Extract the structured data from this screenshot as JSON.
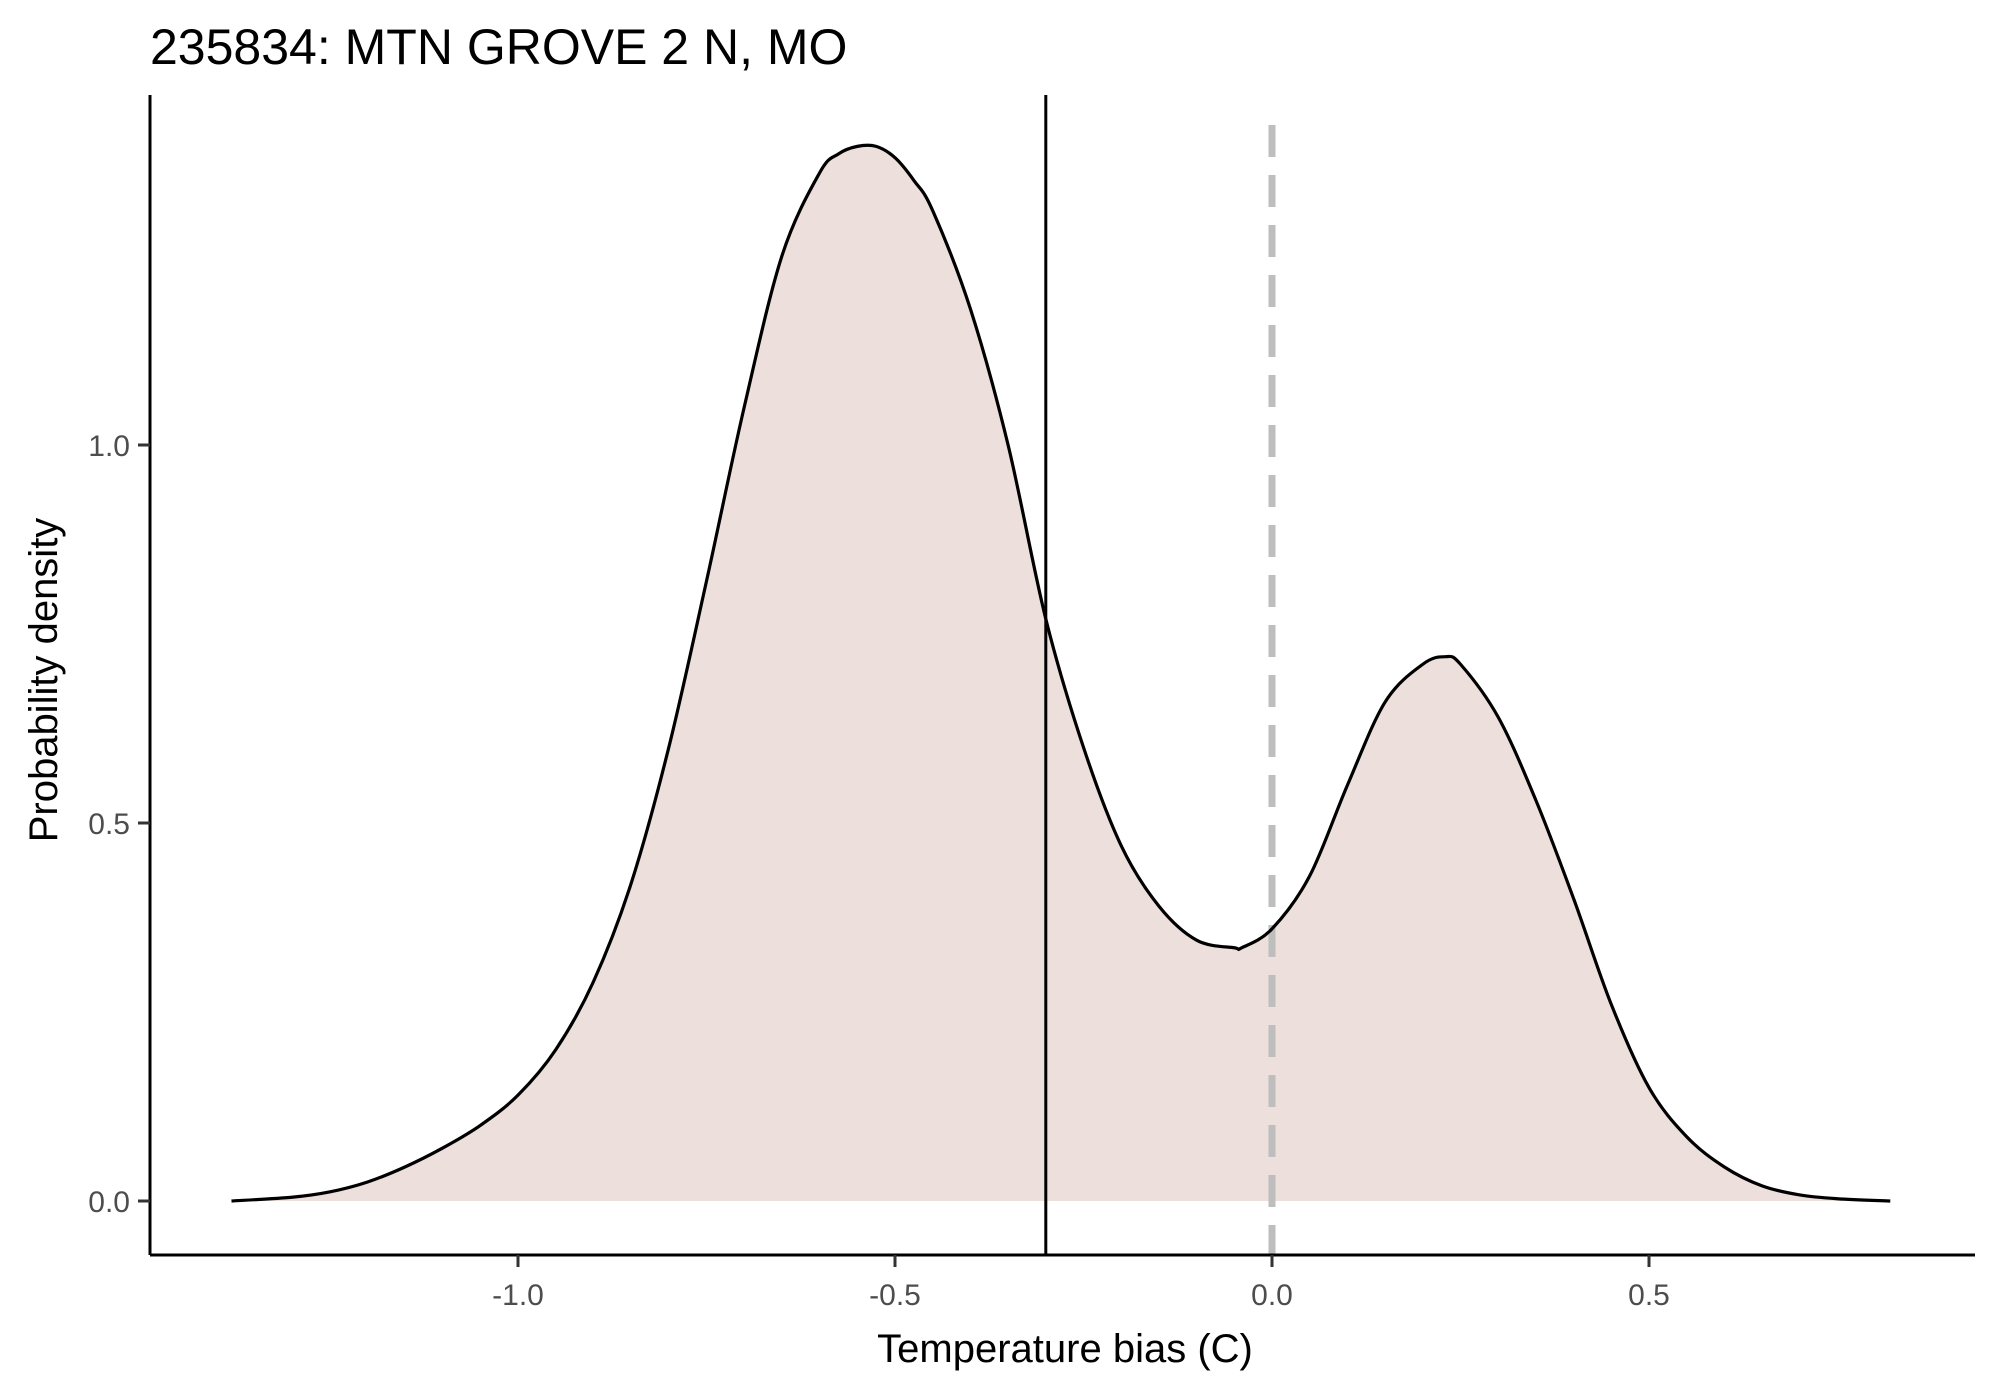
{
  "chart_data": {
    "type": "area",
    "title": "235834: MTN GROVE 2 N, MO",
    "xlabel": "Temperature bias (C)",
    "ylabel": "Probability density",
    "xlim": [
      -1.5,
      0.93
    ],
    "ylim": [
      -0.07,
      1.46
    ],
    "x_ticks": [
      -1.0,
      -0.5,
      0.0,
      0.5
    ],
    "x_tick_labels": [
      "-1.0",
      "-0.5",
      "0.0",
      "0.5"
    ],
    "y_ticks": [
      0.0,
      0.5,
      1.0
    ],
    "y_tick_labels": [
      "0.0",
      "0.5",
      "1.0"
    ],
    "grid": false,
    "fill_color": "#ecdfdc",
    "line_color": "#000000",
    "vertical_lines": [
      {
        "x": -0.3,
        "style": "solid",
        "color": "#000000"
      },
      {
        "x": 0.0,
        "style": "dashed",
        "color": "#bebebe"
      }
    ],
    "series": [
      {
        "x": [
          -1.38,
          -1.3,
          -1.25,
          -1.2,
          -1.15,
          -1.1,
          -1.05,
          -1.0,
          -0.95,
          -0.9,
          -0.85,
          -0.8,
          -0.75,
          -0.7,
          -0.65,
          -0.6,
          -0.575,
          -0.55,
          -0.525,
          -0.5,
          -0.475,
          -0.45,
          -0.4,
          -0.35,
          -0.3,
          -0.25,
          -0.2,
          -0.15,
          -0.1,
          -0.05,
          -0.04,
          0.0,
          0.05,
          0.1,
          0.15,
          0.2,
          0.23,
          0.25,
          0.3,
          0.35,
          0.4,
          0.45,
          0.5,
          0.55,
          0.6,
          0.65,
          0.7,
          0.75,
          0.82
        ],
        "y": [
          0.0,
          0.005,
          0.012,
          0.025,
          0.045,
          0.07,
          0.1,
          0.14,
          0.2,
          0.29,
          0.42,
          0.6,
          0.82,
          1.05,
          1.25,
          1.36,
          1.385,
          1.395,
          1.395,
          1.38,
          1.35,
          1.31,
          1.18,
          1.0,
          0.77,
          0.6,
          0.47,
          0.39,
          0.345,
          0.335,
          0.335,
          0.36,
          0.43,
          0.55,
          0.66,
          0.71,
          0.72,
          0.71,
          0.64,
          0.53,
          0.4,
          0.26,
          0.15,
          0.085,
          0.045,
          0.02,
          0.008,
          0.003,
          0.0
        ]
      }
    ]
  }
}
